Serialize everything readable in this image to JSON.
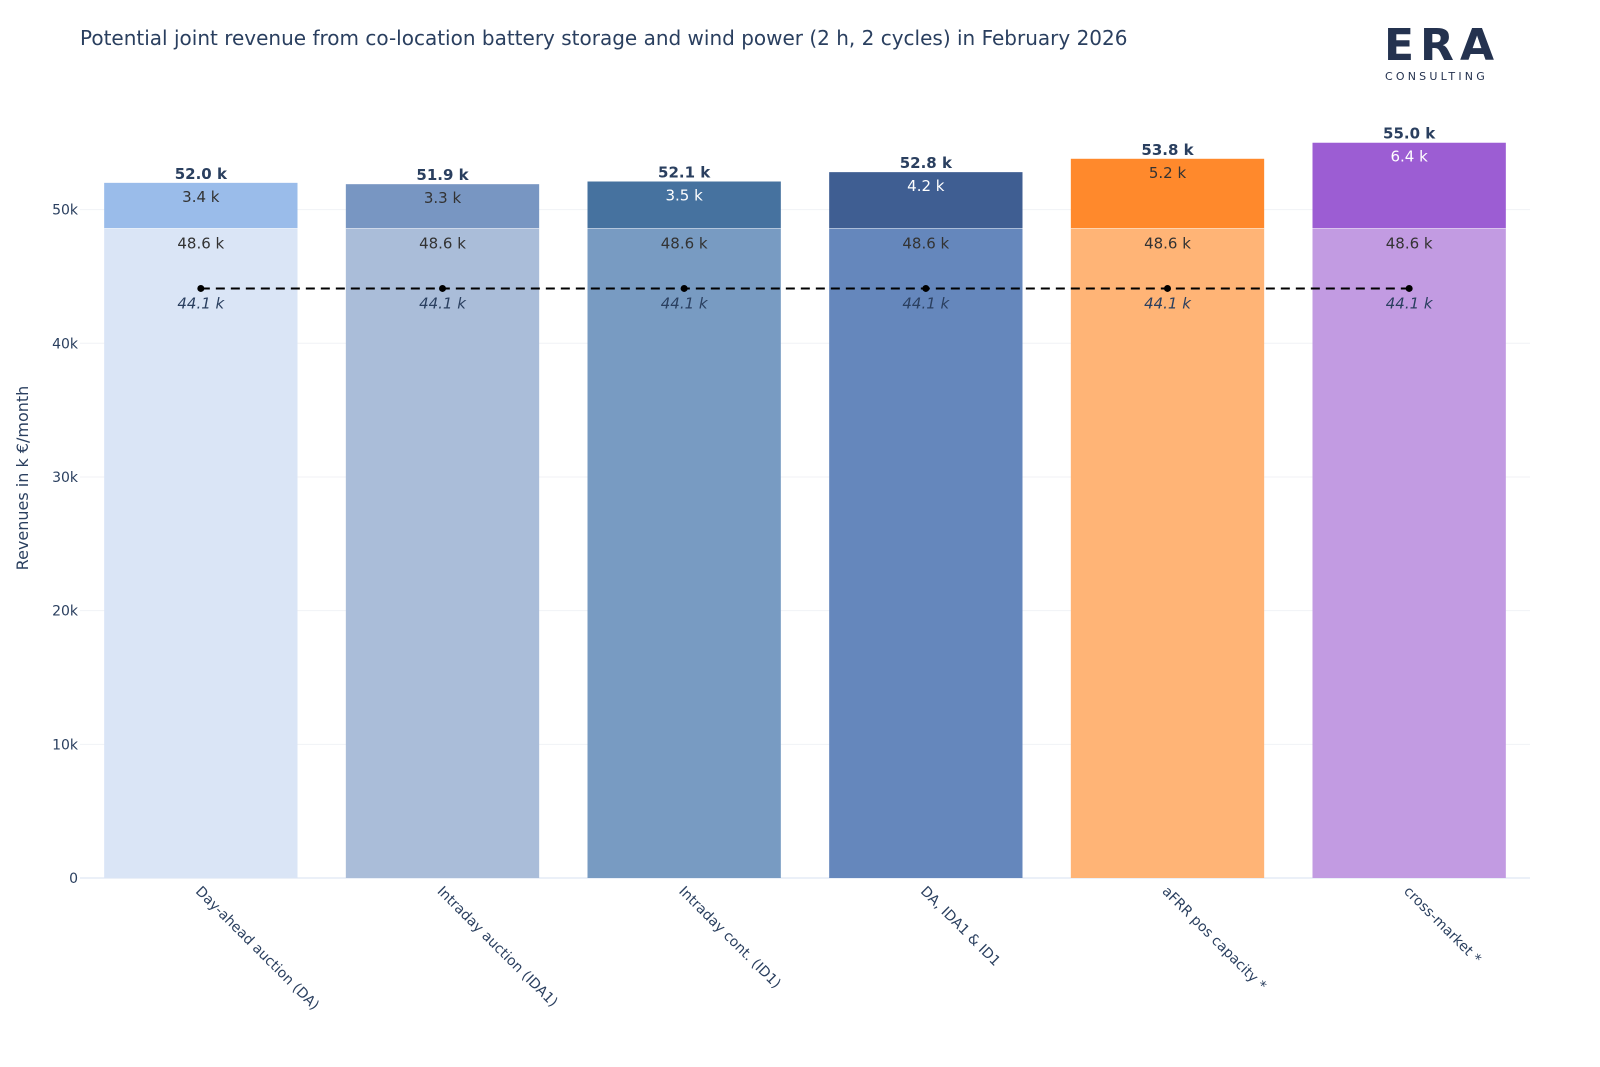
{
  "title": "Potential joint revenue from co-location battery storage and wind power (2 h, 2 cycles) in February 2026",
  "logo": {
    "word": "ERA",
    "sub": "CONSULTING"
  },
  "chart_data": {
    "type": "bar",
    "stacked": true,
    "title": "Potential joint revenue from co-location battery storage and wind power (2 h, 2 cycles) in February 2026",
    "xlabel": "",
    "ylabel": "Revenues in k €/month",
    "ylim": [
      0,
      57000
    ],
    "yticks": [
      0,
      10000,
      20000,
      30000,
      40000,
      50000
    ],
    "ytick_labels": [
      "0",
      "10k",
      "20k",
      "30k",
      "40k",
      "50k"
    ],
    "grid": true,
    "categories": [
      "Day-ahead auction (DA)",
      "Intraday auction (IDA1)",
      "Intraday cont. (ID1)",
      "DA, IDA1 & ID1",
      "aFRR pos capacity *",
      "cross-market *"
    ],
    "series": [
      {
        "values": [
          48600,
          48600,
          48600,
          48600,
          48600,
          48600
        ],
        "labels": [
          "48.6 k",
          "48.6 k",
          "48.6 k",
          "48.6 k",
          "48.6 k",
          "48.6 k"
        ],
        "colors": [
          "#dae5f6",
          "#aabdd9",
          "#789bc2",
          "#6587bc",
          "#ffb476",
          "#c29be2"
        ]
      },
      {
        "values": [
          3400,
          3300,
          3500,
          4200,
          5200,
          6400
        ],
        "labels": [
          "3.4 k",
          "3.3 k",
          "3.5 k",
          "4.2 k",
          "5.2 k",
          "6.4 k"
        ],
        "colors": [
          "#9abcea",
          "#7896c2",
          "#46729f",
          "#3f5e92",
          "#ff892c",
          "#9c5dd3"
        ],
        "label_colors": [
          "#333333",
          "#333333",
          "#ffffff",
          "#ffffff",
          "#333333",
          "#ffffff"
        ]
      }
    ],
    "totals": [
      52000,
      51900,
      52100,
      52800,
      53800,
      55000
    ],
    "total_labels": [
      "52.0 k",
      "51.9 k",
      "52.1 k",
      "52.8 k",
      "53.8 k",
      "55.0 k"
    ],
    "reference_line": {
      "values": [
        44100,
        44100,
        44100,
        44100,
        44100,
        44100
      ],
      "labels": [
        "44.1 k",
        "44.1 k",
        "44.1 k",
        "44.1 k",
        "44.1 k",
        "44.1 k"
      ],
      "style": "dashed",
      "color": "#000000"
    }
  }
}
